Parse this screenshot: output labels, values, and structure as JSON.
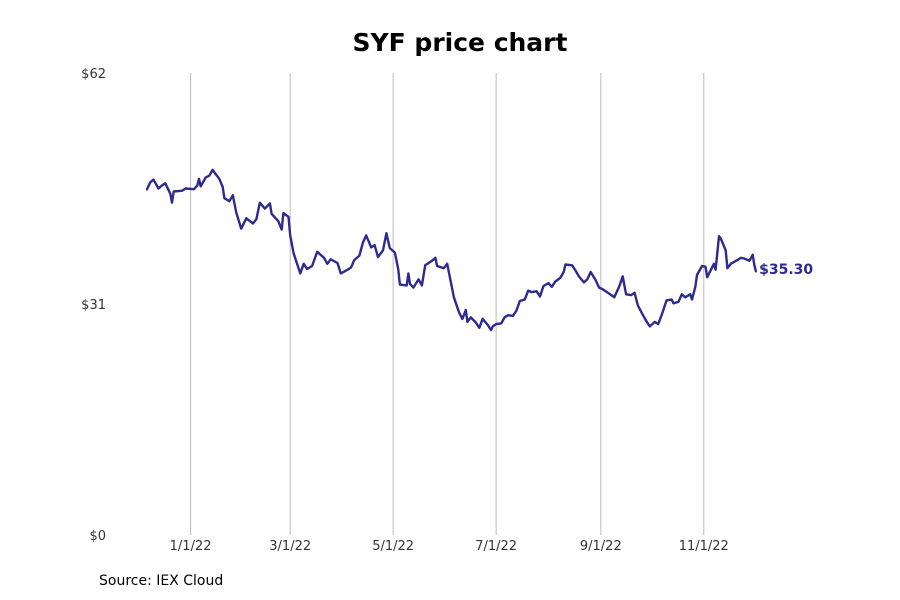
{
  "source_note": "Source: IEX Cloud",
  "colors": {
    "line": "#2e2a8f",
    "grid": "#bbbbbb",
    "text": "#333333"
  },
  "chart_data": {
    "type": "line",
    "title": "SYF price chart",
    "xlabel": "",
    "ylabel": "",
    "grid": "vertical lines at x tick positions",
    "xlim": [
      "2021-11-19",
      "2022-12-28"
    ],
    "ylim": [
      0,
      62
    ],
    "x_ticks": [
      {
        "date": "2022-01-01",
        "label": "1/1/22"
      },
      {
        "date": "2022-03-01",
        "label": "3/1/22"
      },
      {
        "date": "2022-05-01",
        "label": "5/1/22"
      },
      {
        "date": "2022-07-01",
        "label": "7/1/22"
      },
      {
        "date": "2022-09-01",
        "label": "9/1/22"
      },
      {
        "date": "2022-11-01",
        "label": "11/1/22"
      }
    ],
    "y_ticks": [
      {
        "value": 62,
        "label": "$62"
      },
      {
        "value": 31,
        "label": "$31"
      },
      {
        "value": 0,
        "label": "$0"
      }
    ],
    "last_value_label": "$35.30",
    "series": [
      {
        "values": [
          [
            "2021-12-06",
            46.3
          ],
          [
            "2021-12-08",
            47.3
          ],
          [
            "2021-12-10",
            47.7
          ],
          [
            "2021-12-13",
            46.5
          ],
          [
            "2021-12-15",
            46.9
          ],
          [
            "2021-12-17",
            47.2
          ],
          [
            "2021-12-20",
            45.8
          ],
          [
            "2021-12-21",
            44.6
          ],
          [
            "2021-12-22",
            46.1
          ],
          [
            "2021-12-27",
            46.2
          ],
          [
            "2021-12-29",
            46.5
          ],
          [
            "2022-01-03",
            46.4
          ],
          [
            "2022-01-05",
            46.9
          ],
          [
            "2022-01-06",
            47.8
          ],
          [
            "2022-01-07",
            46.8
          ],
          [
            "2022-01-10",
            48.0
          ],
          [
            "2022-01-12",
            48.2
          ],
          [
            "2022-01-14",
            49.0
          ],
          [
            "2022-01-18",
            47.8
          ],
          [
            "2022-01-20",
            46.7
          ],
          [
            "2022-01-21",
            45.2
          ],
          [
            "2022-01-24",
            44.8
          ],
          [
            "2022-01-26",
            45.6
          ],
          [
            "2022-01-28",
            43.3
          ],
          [
            "2022-01-31",
            41.1
          ],
          [
            "2022-02-03",
            42.5
          ],
          [
            "2022-02-07",
            41.8
          ],
          [
            "2022-02-09",
            42.4
          ],
          [
            "2022-02-11",
            44.6
          ],
          [
            "2022-02-14",
            43.8
          ],
          [
            "2022-02-17",
            44.5
          ],
          [
            "2022-02-18",
            43.1
          ],
          [
            "2022-02-22",
            42.1
          ],
          [
            "2022-02-24",
            41.0
          ],
          [
            "2022-02-25",
            43.2
          ],
          [
            "2022-02-28",
            42.7
          ],
          [
            "2022-03-01",
            40.2
          ],
          [
            "2022-03-03",
            37.8
          ],
          [
            "2022-03-07",
            35.1
          ],
          [
            "2022-03-09",
            36.4
          ],
          [
            "2022-03-11",
            35.7
          ],
          [
            "2022-03-14",
            36.1
          ],
          [
            "2022-03-17",
            38.0
          ],
          [
            "2022-03-21",
            37.2
          ],
          [
            "2022-03-23",
            36.4
          ],
          [
            "2022-03-25",
            37.0
          ],
          [
            "2022-03-29",
            36.5
          ],
          [
            "2022-03-31",
            35.1
          ],
          [
            "2022-04-04",
            35.6
          ],
          [
            "2022-04-06",
            35.9
          ],
          [
            "2022-04-08",
            36.9
          ],
          [
            "2022-04-11",
            37.5
          ],
          [
            "2022-04-13",
            39.2
          ],
          [
            "2022-04-15",
            40.2
          ],
          [
            "2022-04-18",
            38.6
          ],
          [
            "2022-04-20",
            38.9
          ],
          [
            "2022-04-22",
            37.3
          ],
          [
            "2022-04-25",
            38.2
          ],
          [
            "2022-04-27",
            40.5
          ],
          [
            "2022-04-29",
            38.5
          ],
          [
            "2022-05-02",
            37.9
          ],
          [
            "2022-05-04",
            35.7
          ],
          [
            "2022-05-05",
            33.6
          ],
          [
            "2022-05-09",
            33.5
          ],
          [
            "2022-05-10",
            35.1
          ],
          [
            "2022-05-11",
            33.7
          ],
          [
            "2022-05-13",
            33.2
          ],
          [
            "2022-05-16",
            34.3
          ],
          [
            "2022-05-18",
            33.5
          ],
          [
            "2022-05-20",
            36.2
          ],
          [
            "2022-05-24",
            36.8
          ],
          [
            "2022-05-26",
            37.2
          ],
          [
            "2022-05-27",
            36.1
          ],
          [
            "2022-05-31",
            35.8
          ],
          [
            "2022-06-02",
            36.4
          ],
          [
            "2022-06-06",
            31.9
          ],
          [
            "2022-06-09",
            29.9
          ],
          [
            "2022-06-11",
            29.0
          ],
          [
            "2022-06-13",
            30.2
          ],
          [
            "2022-06-14",
            28.6
          ],
          [
            "2022-06-16",
            29.2
          ],
          [
            "2022-06-19",
            28.5
          ],
          [
            "2022-06-21",
            27.8
          ],
          [
            "2022-06-23",
            29.0
          ],
          [
            "2022-06-26",
            28.2
          ],
          [
            "2022-06-28",
            27.5
          ],
          [
            "2022-06-29",
            28.0
          ],
          [
            "2022-07-01",
            28.3
          ],
          [
            "2022-07-04",
            28.4
          ],
          [
            "2022-07-06",
            29.2
          ],
          [
            "2022-07-08",
            29.5
          ],
          [
            "2022-07-11",
            29.4
          ],
          [
            "2022-07-13",
            30.1
          ],
          [
            "2022-07-15",
            31.4
          ],
          [
            "2022-07-18",
            31.6
          ],
          [
            "2022-07-20",
            32.8
          ],
          [
            "2022-07-22",
            32.6
          ],
          [
            "2022-07-25",
            32.7
          ],
          [
            "2022-07-27",
            32.0
          ],
          [
            "2022-07-29",
            33.4
          ],
          [
            "2022-08-01",
            33.8
          ],
          [
            "2022-08-03",
            33.3
          ],
          [
            "2022-08-05",
            34.0
          ],
          [
            "2022-08-08",
            34.5
          ],
          [
            "2022-08-10",
            35.3
          ],
          [
            "2022-08-11",
            36.3
          ],
          [
            "2022-08-15",
            36.2
          ],
          [
            "2022-08-17",
            35.5
          ],
          [
            "2022-08-19",
            34.7
          ],
          [
            "2022-08-22",
            33.9
          ],
          [
            "2022-08-24",
            34.3
          ],
          [
            "2022-08-26",
            35.3
          ],
          [
            "2022-08-29",
            34.2
          ],
          [
            "2022-08-31",
            33.2
          ],
          [
            "2022-09-02",
            33.0
          ],
          [
            "2022-09-06",
            32.4
          ],
          [
            "2022-09-09",
            31.9
          ],
          [
            "2022-09-12",
            33.4
          ],
          [
            "2022-09-14",
            34.7
          ],
          [
            "2022-09-16",
            32.3
          ],
          [
            "2022-09-19",
            32.2
          ],
          [
            "2022-09-21",
            32.5
          ],
          [
            "2022-09-23",
            30.8
          ],
          [
            "2022-09-26",
            29.5
          ],
          [
            "2022-09-28",
            28.7
          ],
          [
            "2022-09-30",
            28.0
          ],
          [
            "2022-10-03",
            28.6
          ],
          [
            "2022-10-05",
            28.3
          ],
          [
            "2022-10-07",
            29.5
          ],
          [
            "2022-10-10",
            31.5
          ],
          [
            "2022-10-13",
            31.6
          ],
          [
            "2022-10-14",
            31.1
          ],
          [
            "2022-10-17",
            31.3
          ],
          [
            "2022-10-19",
            32.3
          ],
          [
            "2022-10-21",
            31.9
          ],
          [
            "2022-10-24",
            32.3
          ],
          [
            "2022-10-25",
            31.6
          ],
          [
            "2022-10-27",
            33.3
          ],
          [
            "2022-10-28",
            34.9
          ],
          [
            "2022-10-31",
            36.1
          ],
          [
            "2022-11-02",
            36.0
          ],
          [
            "2022-11-03",
            34.6
          ],
          [
            "2022-11-07",
            36.4
          ],
          [
            "2022-11-08",
            35.6
          ],
          [
            "2022-11-10",
            40.1
          ],
          [
            "2022-11-11",
            39.8
          ],
          [
            "2022-11-14",
            38.2
          ],
          [
            "2022-11-15",
            35.8
          ],
          [
            "2022-11-17",
            36.4
          ],
          [
            "2022-11-21",
            36.9
          ],
          [
            "2022-11-23",
            37.2
          ],
          [
            "2022-11-25",
            37.1
          ],
          [
            "2022-11-28",
            36.8
          ],
          [
            "2022-11-30",
            37.6
          ],
          [
            "2022-12-01",
            36.2
          ],
          [
            "2022-12-02",
            35.3
          ]
        ]
      }
    ]
  }
}
